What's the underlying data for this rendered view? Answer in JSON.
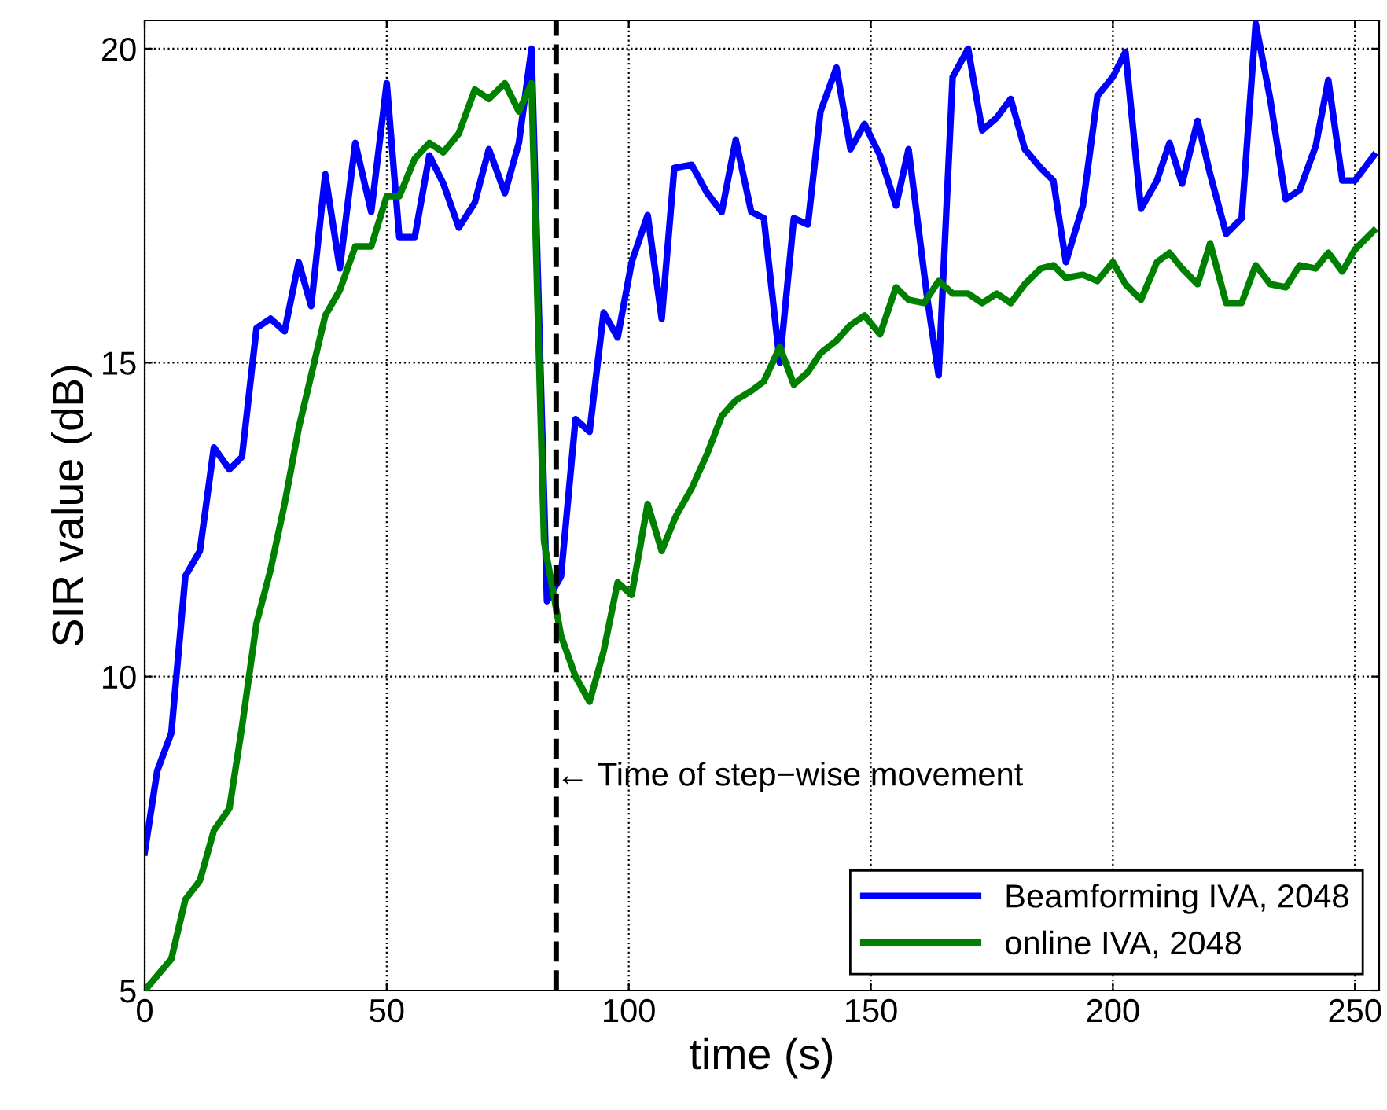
{
  "chart_data": {
    "type": "line",
    "xlabel": "time (s)",
    "ylabel": "SIR value (dB)",
    "xlim": [
      0,
      255
    ],
    "ylim": [
      5,
      20.45
    ],
    "xticks": [
      0,
      50,
      100,
      150,
      200,
      250
    ],
    "yticks": [
      5,
      10,
      15,
      20
    ],
    "grid": true,
    "legend": "bottom right",
    "line_style": "solid",
    "marker": "none",
    "ref_lines": [
      {
        "axis": "x",
        "value": 85,
        "color": "#000000",
        "line_style": "dashed"
      }
    ],
    "annotations": [
      {
        "text": "← Time of step−wise movement",
        "x": 85,
        "y": 8.4
      }
    ],
    "series": [
      {
        "name": "Beamforming IVA, 2048",
        "color": "#0000ff",
        "x": [
          0,
          2.6,
          5.5,
          8.4,
          11.4,
          14.3,
          17.5,
          20.1,
          23.1,
          26,
          28.9,
          31.8,
          34.4,
          37.3,
          40.3,
          43.5,
          46.8,
          50,
          52.6,
          55.8,
          58.8,
          61.7,
          64.9,
          68.2,
          71.1,
          74.4,
          77.3,
          79.9,
          83.1,
          86,
          89,
          91.9,
          94.8,
          97.7,
          100.6,
          103.9,
          106.8,
          109.4,
          113,
          116.2,
          119.2,
          122.1,
          125.3,
          127.9,
          131.2,
          134.1,
          137,
          139.6,
          142.9,
          145.8,
          148.7,
          151.9,
          155.2,
          157.8,
          161.7,
          164,
          166.9,
          170.1,
          173,
          176,
          178.9,
          181.8,
          185.1,
          187.7,
          190.3,
          193.8,
          196.8,
          200,
          202.6,
          205.8,
          209.1,
          211.7,
          214.3,
          217.5,
          220.1,
          223.4,
          226.6,
          229.5,
          232.5,
          235.7,
          238.6,
          241.9,
          244.5,
          247.4,
          250,
          253.9
        ],
        "values": [
          7.2,
          8.5,
          9.1,
          11.6,
          12.0,
          13.65,
          13.3,
          13.5,
          15.55,
          15.7,
          15.5,
          16.6,
          15.9,
          18.0,
          16.5,
          18.5,
          17.4,
          19.45,
          17.0,
          17.0,
          18.3,
          17.85,
          17.15,
          17.55,
          18.4,
          17.7,
          18.5,
          20.0,
          11.2,
          11.6,
          14.1,
          13.9,
          15.8,
          15.4,
          16.6,
          17.35,
          15.7,
          18.1,
          18.15,
          17.7,
          17.4,
          18.55,
          17.4,
          17.3,
          15.0,
          17.3,
          17.2,
          19.0,
          19.7,
          18.4,
          18.8,
          18.3,
          17.5,
          18.4,
          16.0,
          14.8,
          19.55,
          20.0,
          18.7,
          18.9,
          19.2,
          18.4,
          18.1,
          17.9,
          16.6,
          17.5,
          19.25,
          19.55,
          19.95,
          17.45,
          17.9,
          18.5,
          17.85,
          18.85,
          18.0,
          17.05,
          17.3,
          20.4,
          19.2,
          17.6,
          17.75,
          18.45,
          19.5,
          17.9,
          17.9,
          18.3
        ]
      },
      {
        "name": "online IVA, 2048",
        "color": "#008000",
        "x": [
          0,
          5.5,
          8.4,
          11.4,
          14.3,
          17.5,
          20.1,
          23.1,
          26,
          28.9,
          31.8,
          34.4,
          37.3,
          40.3,
          43.5,
          46.8,
          50,
          52.6,
          55.8,
          58.8,
          61.7,
          64.9,
          68.2,
          71.1,
          74.4,
          77.3,
          79.9,
          82.5,
          86,
          89,
          91.9,
          94.8,
          97.7,
          100.6,
          103.9,
          106.8,
          109.7,
          113,
          116.2,
          119.2,
          122.1,
          125.3,
          127.9,
          131.2,
          134.1,
          137,
          139.6,
          142.9,
          145.8,
          148.7,
          151.9,
          155.2,
          157.8,
          161,
          164,
          166.9,
          170.1,
          173,
          176,
          178.9,
          181.8,
          185.1,
          187.7,
          190.3,
          193.8,
          196.8,
          200,
          202.6,
          205.8,
          209.1,
          211.7,
          214.3,
          217.5,
          220.1,
          223.4,
          226.6,
          229.5,
          232.5,
          235.7,
          238.6,
          241.9,
          244.5,
          247.4,
          250,
          253.9
        ],
        "values": [
          5.0,
          5.5,
          6.45,
          6.75,
          7.55,
          7.9,
          9.2,
          10.85,
          11.7,
          12.75,
          13.95,
          14.8,
          15.75,
          16.15,
          16.85,
          16.85,
          17.65,
          17.65,
          18.25,
          18.5,
          18.35,
          18.65,
          19.35,
          19.2,
          19.45,
          19.0,
          19.45,
          12.15,
          10.65,
          10.0,
          9.6,
          10.4,
          11.5,
          11.3,
          12.75,
          12.0,
          12.55,
          13.0,
          13.55,
          14.15,
          14.4,
          14.55,
          14.7,
          15.25,
          14.65,
          14.85,
          15.15,
          15.35,
          15.6,
          15.75,
          15.45,
          16.2,
          16.0,
          15.95,
          16.3,
          16.1,
          16.1,
          15.95,
          16.1,
          15.95,
          16.25,
          16.5,
          16.55,
          16.35,
          16.4,
          16.3,
          16.6,
          16.25,
          16.0,
          16.6,
          16.75,
          16.5,
          16.25,
          16.9,
          15.95,
          15.95,
          16.55,
          16.25,
          16.2,
          16.55,
          16.5,
          16.75,
          16.45,
          16.8,
          17.1
        ]
      }
    ]
  }
}
